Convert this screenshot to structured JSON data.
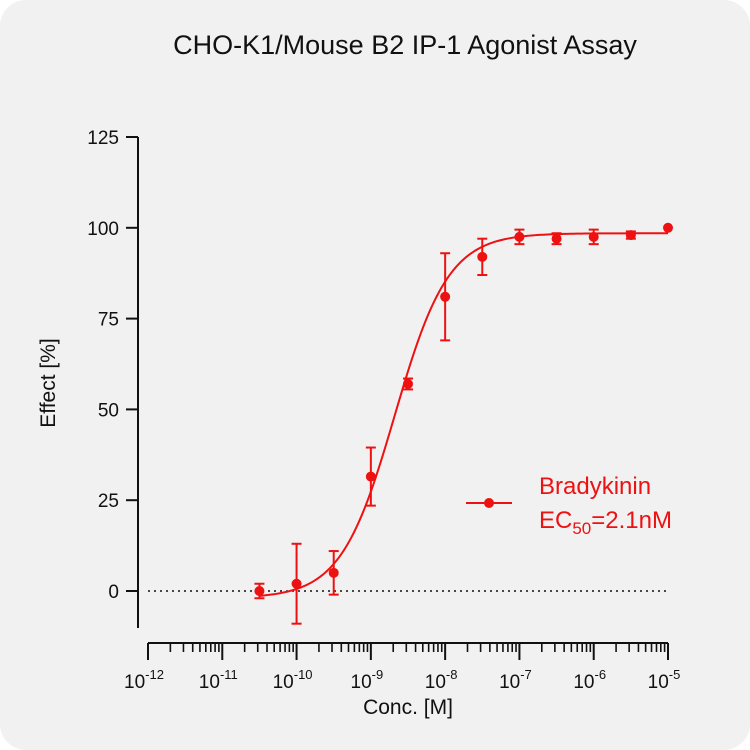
{
  "chart_data": {
    "type": "scatter",
    "title": "CHO-K1/Mouse B2 IP-1 Agonist Assay",
    "xlabel": "Conc. [M]",
    "ylabel": "Effect  [%]",
    "x_scale": "log",
    "xlim_log10": [
      -12,
      -5
    ],
    "ylim": [
      -10,
      125
    ],
    "yticks": [
      "0",
      "25",
      "50",
      "75",
      "100",
      "125"
    ],
    "xticks": [
      {
        "base": "10",
        "exp": "-12"
      },
      {
        "base": "10",
        "exp": "-11"
      },
      {
        "base": "10",
        "exp": "-10"
      },
      {
        "base": "10",
        "exp": "-9"
      },
      {
        "base": "10",
        "exp": "-8"
      },
      {
        "base": "10",
        "exp": "-7"
      },
      {
        "base": "10",
        "exp": "-6"
      },
      {
        "base": "10",
        "exp": "-5"
      }
    ],
    "baseline": 0,
    "color": "#ee1111",
    "series": [
      {
        "name": "Bradykinin",
        "x_log10": [
          -10.5,
          -10,
          -9.5,
          -9,
          -8.5,
          -8,
          -7.5,
          -7,
          -6.5,
          -6,
          -5.5,
          -5
        ],
        "y": [
          0,
          2,
          5,
          31.5,
          57,
          81,
          92,
          97.5,
          97,
          97.5,
          98,
          100
        ],
        "err": [
          2,
          11,
          6,
          8,
          1.5,
          12,
          5,
          2,
          1.5,
          2,
          1,
          0
        ]
      }
    ],
    "fit": {
      "bottom": -2,
      "top": 98.5,
      "logEC50": -8.68,
      "hill": 1.2
    },
    "legend": {
      "label": "Bradykinin",
      "ec50_prefix": "EC",
      "ec50_sub": "50",
      "ec50_value": "=2.1nM"
    }
  }
}
